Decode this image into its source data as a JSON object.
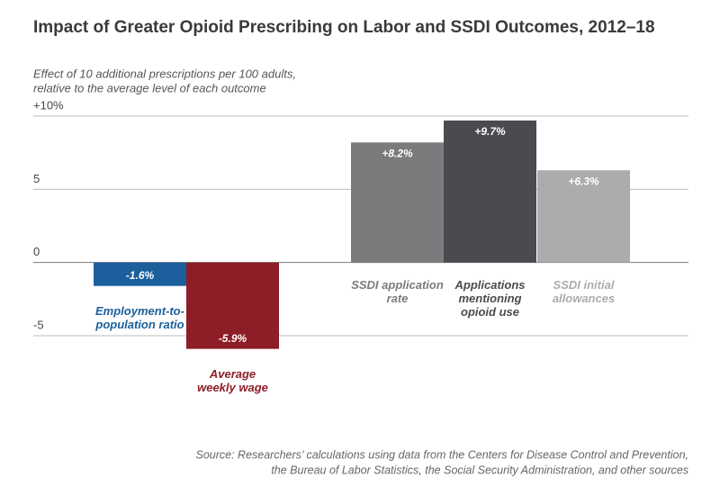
{
  "chart_data": {
    "type": "bar",
    "title": "Impact of Greater Opioid Prescribing on Labor and SSDI Outcomes, 2012–18",
    "subtitle": [
      "Effect of 10 additional prescriptions per 100 adults,",
      "relative to the average level of each outcome"
    ],
    "categories": [
      [
        "Employment-to-",
        "population ratio"
      ],
      [
        "Average",
        "weekly wage"
      ],
      [
        "SSDI application",
        "rate"
      ],
      [
        "Applications",
        "mentioning",
        "opioid use"
      ],
      [
        "SSDI initial",
        "allowances"
      ]
    ],
    "values": [
      -1.6,
      -5.9,
      8.2,
      9.7,
      6.3
    ],
    "value_labels": [
      "-1.6%",
      "-5.9%",
      "+8.2%",
      "+9.7%",
      "+6.3%"
    ],
    "colors": [
      "#1b5f9c",
      "#8d1d26",
      "#7b7b7d",
      "#4a4b4f",
      "#abacae"
    ],
    "ylim": [
      -5,
      10
    ],
    "yticks": [
      -5,
      0,
      5,
      {
        "value": 10,
        "label": "+10%"
      }
    ],
    "grid": true,
    "source": [
      "Source: Researchers’ calculations using data from the Centers for Disease Control and Prevention,",
      "the Bureau of Labor Statistics, the Social Security Administration, and other sources"
    ]
  }
}
